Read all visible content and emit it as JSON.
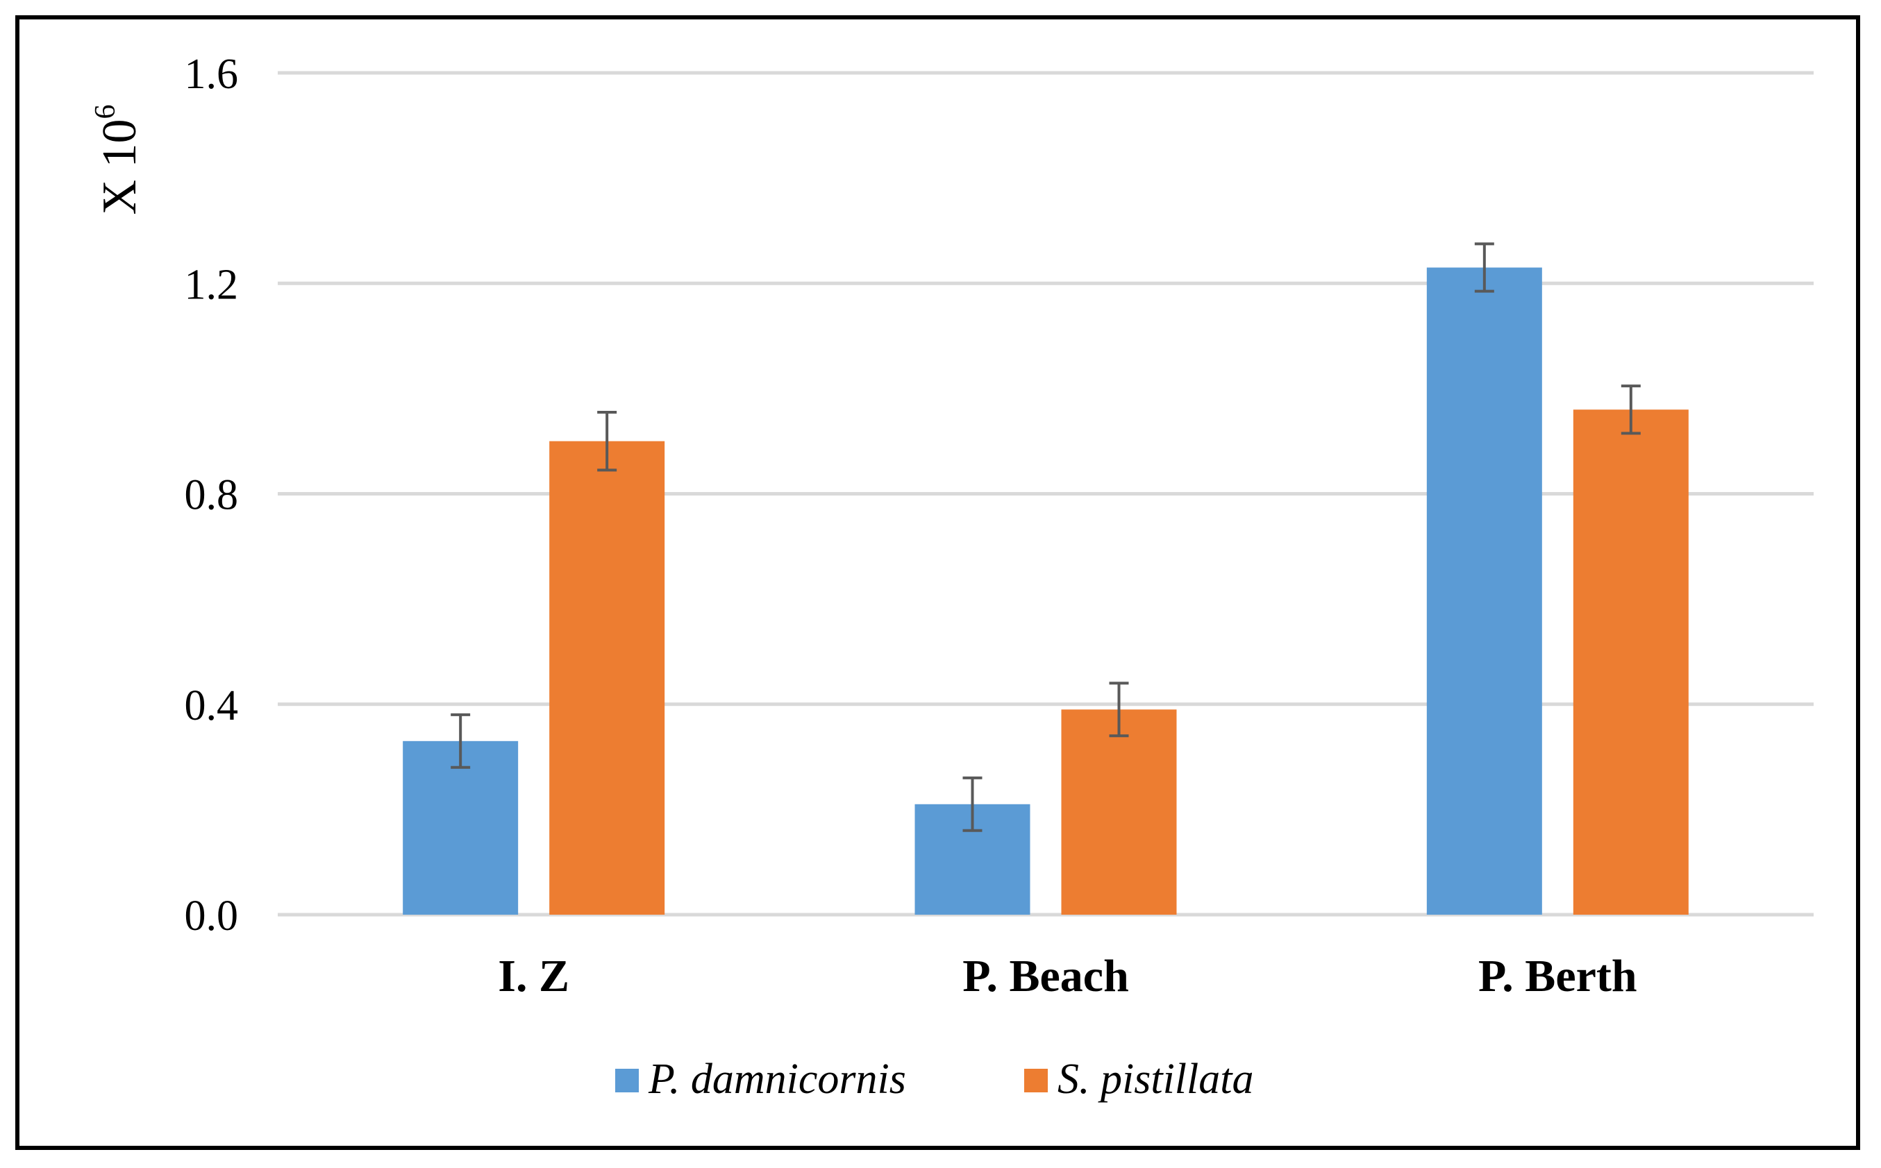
{
  "chart_data": {
    "type": "bar",
    "title": "",
    "xlabel": "",
    "ylabel": "X 10",
    "ylabel_superscript": "6",
    "categories": [
      "I. Z",
      "P. Beach",
      "P. Berth"
    ],
    "series": [
      {
        "name": "P. damnicornis",
        "color": "#5B9BD5",
        "values": [
          0.33,
          0.21,
          1.23
        ],
        "errors": [
          0.05,
          0.05,
          0.045
        ]
      },
      {
        "name": "S. pistillata",
        "color": "#ED7D31",
        "values": [
          0.9,
          0.39,
          0.96
        ],
        "errors": [
          0.055,
          0.05,
          0.045
        ]
      }
    ],
    "yticks": [
      "0.0",
      "0.4",
      "0.8",
      "1.2",
      "1.6"
    ],
    "ylim": [
      0,
      1.6
    ],
    "grid": true,
    "legend_position": "bottom",
    "colors": {
      "gridline": "#D9D9D9",
      "errorbar": "#595959",
      "text": "#000000"
    }
  }
}
